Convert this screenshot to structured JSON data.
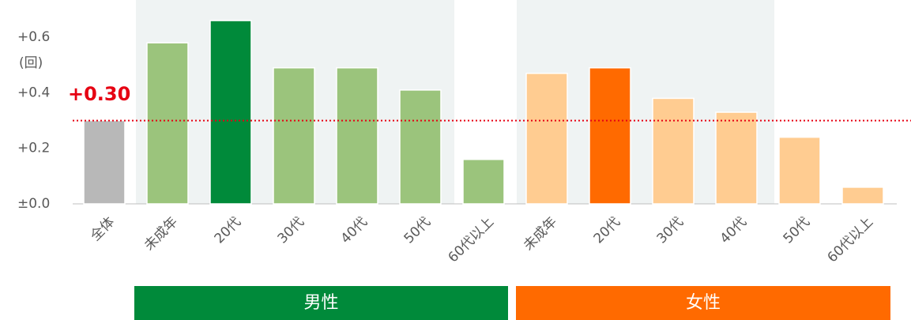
{
  "chart_data": {
    "type": "bar",
    "categories": [
      "全体",
      "未成年",
      "20代",
      "30代",
      "40代",
      "50代",
      "60代以上",
      "未成年",
      "20代",
      "30代",
      "40代",
      "50代",
      "60代以上"
    ],
    "values": [
      0.3,
      0.58,
      0.66,
      0.49,
      0.49,
      0.41,
      0.16,
      0.47,
      0.49,
      0.38,
      0.33,
      0.24,
      0.06
    ],
    "colors": [
      "#b8b8b8",
      "#9bc47c",
      "#008a3a",
      "#9bc47c",
      "#9bc47c",
      "#9bc47c",
      "#9bc47c",
      "#ffcc91",
      "#ff6a00",
      "#ffcc91",
      "#ffcc91",
      "#ffcc91",
      "#ffcc91"
    ],
    "ylim": [
      0,
      0.7
    ],
    "yticks": [
      {
        "value": 0,
        "label": "±0.0"
      },
      {
        "value": 0.2,
        "label": "+0.2"
      },
      {
        "value": 0.4,
        "label": "+0.4"
      },
      {
        "value": 0.6,
        "label": "+0.6"
      }
    ],
    "y_unit": "(回)",
    "reference": {
      "value": 0.3,
      "label": "+0.30",
      "color": "#e60012"
    },
    "groups": [
      {
        "name": "男性",
        "color": "#008a3a"
      },
      {
        "name": "女性",
        "color": "#ff6a00"
      }
    ]
  }
}
